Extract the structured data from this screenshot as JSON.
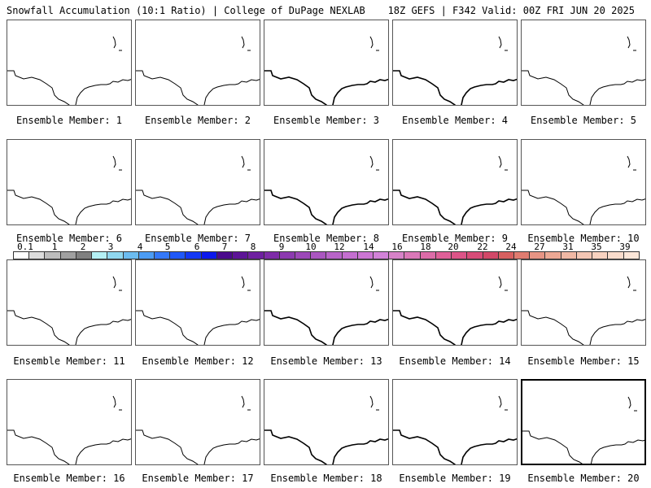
{
  "header": {
    "left": "Snowfall Accumulation (10:1 Ratio) | College of DuPage NEXLAB",
    "right": "18Z GEFS | F342 Valid: 00Z FRI JUN 20 2025"
  },
  "member_prefix": "Ensemble Member: ",
  "members": [
    "1",
    "2",
    "3",
    "4",
    "5",
    "6",
    "7",
    "8",
    "9",
    "10",
    "11",
    "12",
    "13",
    "14",
    "15",
    "16",
    "17",
    "18",
    "19",
    "20"
  ],
  "colorbar": {
    "labels": [
      "0.1",
      "1",
      "2",
      "3",
      "4",
      "5",
      "6",
      "7",
      "8",
      "9",
      "10",
      "12",
      "14",
      "16",
      "18",
      "20",
      "22",
      "24",
      "27",
      "31",
      "35",
      "39"
    ],
    "colors": [
      "#ffffff",
      "#dcdcdc",
      "#bdbdbd",
      "#a0a0a0",
      "#808080",
      "#b4f0f4",
      "#90d8f0",
      "#6cbcf0",
      "#4c9cf4",
      "#3478f8",
      "#2058f8",
      "#1438f4",
      "#0c18ec",
      "#4a0a8c",
      "#5c1496",
      "#6e20a0",
      "#7e2ca8",
      "#8c3ab0",
      "#9c48b8",
      "#aa56c0",
      "#b864c8",
      "#c46ed0",
      "#cc76d4",
      "#d282d8",
      "#d682c8",
      "#da78b8",
      "#dc6ca8",
      "#de6098",
      "#dc5488",
      "#d84c78",
      "#d24868",
      "#d86060",
      "#e07c70",
      "#e69484",
      "#eca894",
      "#f0b8a4",
      "#f4c6b4",
      "#f8d2c0",
      "#fadccc",
      "#fce6d8"
    ]
  }
}
